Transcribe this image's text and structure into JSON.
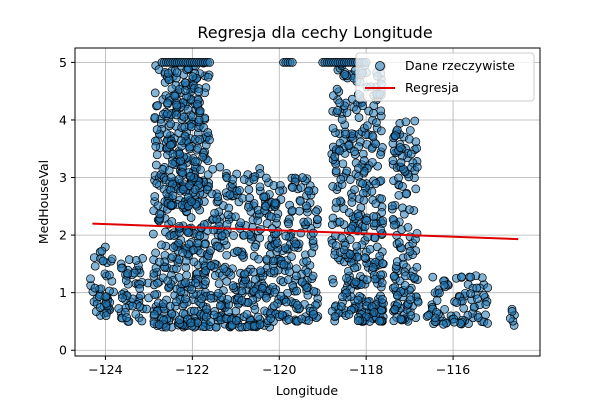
{
  "chart_data": {
    "type": "scatter",
    "title": "Regresja dla cechy Longitude",
    "xlabel": "Longitude",
    "ylabel": "MedHouseVal",
    "xlim": [
      -124.7,
      -114.0
    ],
    "ylim": [
      -0.1,
      5.25
    ],
    "xticks": [
      -124,
      -122,
      -120,
      -118,
      -116
    ],
    "xtick_labels": [
      "−124",
      "−122",
      "−120",
      "−118",
      "−116"
    ],
    "yticks": [
      0,
      1,
      2,
      3,
      4,
      5
    ],
    "ytick_labels": [
      "0",
      "1",
      "2",
      "3",
      "4",
      "5"
    ],
    "grid": true,
    "legend_position": "top-right",
    "series": [
      {
        "name": "Dane rzeczywiste",
        "kind": "scatter",
        "color": "#1f77b4",
        "clusters": [
          {
            "x_range": [
              -124.35,
              -123.8
            ],
            "y_range": [
              0.6,
              1.8
            ]
          },
          {
            "x_range": [
              -123.7,
              -123.0
            ],
            "y_range": [
              0.5,
              1.6
            ]
          },
          {
            "x_range": [
              -122.9,
              -121.6
            ],
            "y_range": [
              0.4,
              5.0
            ]
          },
          {
            "x_range": [
              -122.6,
              -121.8
            ],
            "y_range": [
              2.5,
              5.0
            ]
          },
          {
            "x_range": [
              -121.6,
              -120.2
            ],
            "y_range": [
              0.4,
              3.2
            ]
          },
          {
            "x_range": [
              -120.2,
              -119.1
            ],
            "y_range": [
              0.5,
              3.0
            ]
          },
          {
            "x_range": [
              -118.8,
              -117.6
            ],
            "y_range": [
              0.5,
              5.0
            ]
          },
          {
            "x_range": [
              -117.4,
              -116.8
            ],
            "y_range": [
              0.5,
              4.0
            ]
          },
          {
            "x_range": [
              -116.6,
              -115.2
            ],
            "y_range": [
              0.45,
              1.3
            ]
          },
          {
            "x_range": [
              -114.7,
              -114.5
            ],
            "y_range": [
              0.4,
              0.8
            ]
          }
        ],
        "capped_value": 5.0,
        "capped_ranges": [
          [
            -122.7,
            -121.6
          ],
          [
            -119.9,
            -119.7
          ],
          [
            -119.0,
            -118.0
          ]
        ]
      },
      {
        "name": "Regresja",
        "kind": "line",
        "color": "#e00000",
        "x": [
          -124.3,
          -114.5
        ],
        "y": [
          2.2,
          1.93
        ]
      }
    ]
  }
}
